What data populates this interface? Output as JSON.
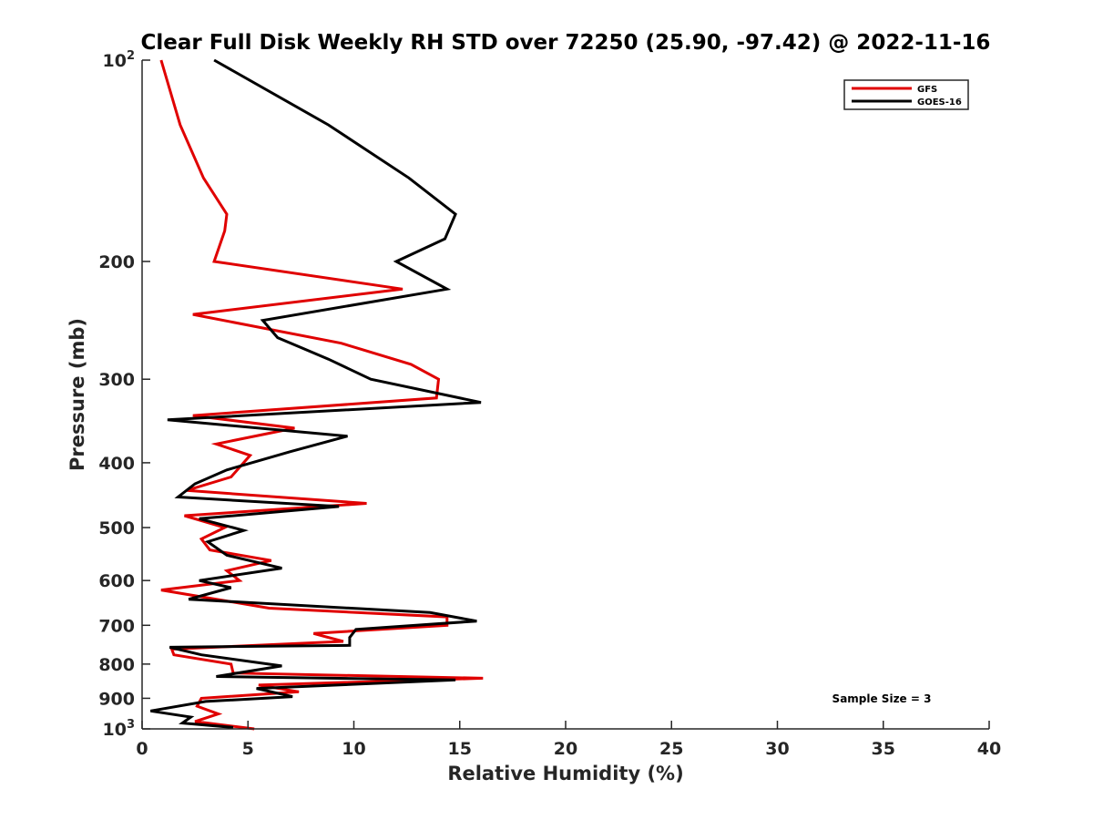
{
  "chart_data": {
    "type": "line",
    "title": "Clear Full Disk Weekly RH STD over 72250 (25.90, -97.42) @ 2022-11-16",
    "xlabel": "Relative Humidity (%)",
    "ylabel": "Pressure (mb)",
    "xlim": [
      0,
      40
    ],
    "ylim": [
      100,
      1000
    ],
    "y_scale": "log",
    "y_reversed": true,
    "grid": false,
    "x_ticks": [
      0,
      5,
      10,
      15,
      20,
      25,
      30,
      35,
      40
    ],
    "x_tick_labels": [
      "0",
      "5",
      "10",
      "15",
      "20",
      "25",
      "30",
      "35",
      "40"
    ],
    "y_ticks": [
      100,
      200,
      300,
      400,
      500,
      600,
      700,
      800,
      900,
      1000
    ],
    "y_tick_labels": [
      {
        "base": "10",
        "exp": "2"
      },
      {
        "base": "200",
        "exp": ""
      },
      {
        "base": "300",
        "exp": ""
      },
      {
        "base": "400",
        "exp": ""
      },
      {
        "base": "500",
        "exp": ""
      },
      {
        "base": "600",
        "exp": ""
      },
      {
        "base": "700",
        "exp": ""
      },
      {
        "base": "800",
        "exp": ""
      },
      {
        "base": "900",
        "exp": ""
      },
      {
        "base": "10",
        "exp": "3"
      }
    ],
    "legend_position": "top-right",
    "annotation": "Sample Size = 3",
    "series": [
      {
        "name": "GFS",
        "color": "#e00000",
        "points": [
          [
            0.9,
            100
          ],
          [
            1.8,
            125
          ],
          [
            2.9,
            150
          ],
          [
            4.0,
            170
          ],
          [
            3.9,
            180
          ],
          [
            3.4,
            200
          ],
          [
            12.3,
            220
          ],
          [
            2.4,
            240
          ],
          [
            9.4,
            265
          ],
          [
            12.7,
            285
          ],
          [
            14.0,
            300
          ],
          [
            13.9,
            320
          ],
          [
            2.4,
            340
          ],
          [
            7.2,
            355
          ],
          [
            3.5,
            375
          ],
          [
            5.1,
            390
          ],
          [
            4.2,
            420
          ],
          [
            2.1,
            440
          ],
          [
            10.6,
            460
          ],
          [
            2.0,
            480
          ],
          [
            3.9,
            500
          ],
          [
            2.8,
            520
          ],
          [
            3.2,
            540
          ],
          [
            6.1,
            560
          ],
          [
            4.0,
            580
          ],
          [
            4.6,
            600
          ],
          [
            0.9,
            620
          ],
          [
            6.0,
            660
          ],
          [
            14.4,
            680
          ],
          [
            14.4,
            700
          ],
          [
            8.1,
            720
          ],
          [
            9.5,
            740
          ],
          [
            1.4,
            760
          ],
          [
            1.5,
            775
          ],
          [
            4.2,
            800
          ],
          [
            4.3,
            825
          ],
          [
            16.1,
            840
          ],
          [
            5.5,
            860
          ],
          [
            7.4,
            880
          ],
          [
            2.8,
            900
          ],
          [
            2.6,
            925
          ],
          [
            3.6,
            950
          ],
          [
            2.5,
            975
          ],
          [
            5.3,
            1000
          ]
        ]
      },
      {
        "name": "GOES-16",
        "color": "#000000",
        "points": [
          [
            3.4,
            100
          ],
          [
            8.8,
            125
          ],
          [
            12.6,
            150
          ],
          [
            14.8,
            170
          ],
          [
            14.3,
            185
          ],
          [
            12.0,
            200
          ],
          [
            14.4,
            220
          ],
          [
            5.7,
            245
          ],
          [
            6.4,
            260
          ],
          [
            8.8,
            280
          ],
          [
            10.8,
            300
          ],
          [
            16.0,
            325
          ],
          [
            1.2,
            345
          ],
          [
            9.7,
            365
          ],
          [
            7.0,
            385
          ],
          [
            4.0,
            410
          ],
          [
            2.5,
            430
          ],
          [
            1.7,
            450
          ],
          [
            9.3,
            465
          ],
          [
            2.7,
            485
          ],
          [
            4.8,
            505
          ],
          [
            3.1,
            525
          ],
          [
            4.0,
            550
          ],
          [
            6.6,
            575
          ],
          [
            2.7,
            600
          ],
          [
            4.2,
            615
          ],
          [
            2.2,
            640
          ],
          [
            13.6,
            670
          ],
          [
            15.8,
            690
          ],
          [
            10.1,
            710
          ],
          [
            9.8,
            730
          ],
          [
            9.8,
            750
          ],
          [
            1.3,
            755
          ],
          [
            2.8,
            775
          ],
          [
            6.6,
            805
          ],
          [
            3.5,
            835
          ],
          [
            14.8,
            845
          ],
          [
            5.4,
            870
          ],
          [
            7.1,
            895
          ],
          [
            3.0,
            910
          ],
          [
            0.4,
            940
          ],
          [
            2.3,
            960
          ],
          [
            1.9,
            980
          ],
          [
            4.3,
            995
          ]
        ]
      }
    ]
  }
}
